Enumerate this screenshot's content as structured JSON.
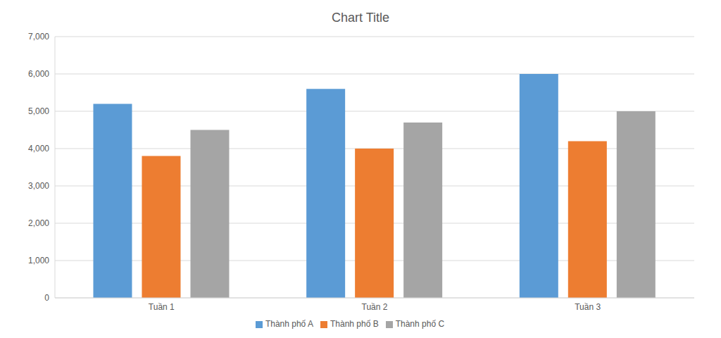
{
  "chart_data": {
    "type": "bar",
    "title": "Chart Title",
    "categories": [
      "Tuần 1",
      "Tuần 2",
      "Tuần 3"
    ],
    "series": [
      {
        "name": "Thành phố A",
        "color": "#5b9bd5",
        "values": [
          5200,
          5600,
          6000
        ]
      },
      {
        "name": "Thành phố B",
        "color": "#ed7d31",
        "values": [
          3800,
          4000,
          4200
        ]
      },
      {
        "name": "Thành phố C",
        "color": "#a5a5a5",
        "values": [
          4500,
          4700,
          5000
        ]
      }
    ],
    "ylim": [
      0,
      7000
    ],
    "yticks": [
      0,
      {
        "value": 1000,
        "label": "1,000"
      },
      {
        "value": 2000,
        "label": "2,000"
      },
      {
        "value": 3000,
        "label": "3,000"
      },
      {
        "value": 4000,
        "label": "4,000"
      },
      {
        "value": 5000,
        "label": "5,000"
      },
      {
        "value": 6000,
        "label": "6,000"
      },
      {
        "value": 7000,
        "label": "7,000"
      }
    ],
    "grid": true,
    "legend": "bottom"
  }
}
